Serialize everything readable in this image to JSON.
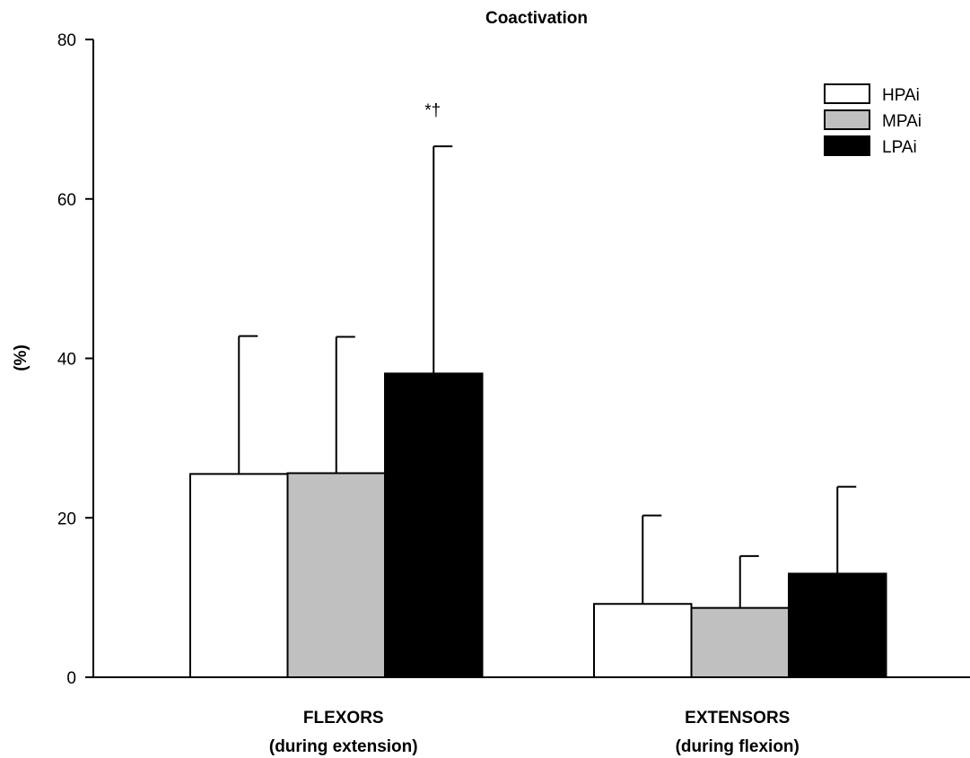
{
  "chart_data": {
    "type": "bar",
    "title": "Coactivation",
    "xlabel": "",
    "ylabel": "(%)",
    "ylim": [
      0,
      80
    ],
    "yticks": [
      "0",
      "20",
      "40",
      "60",
      "80"
    ],
    "categories": [
      {
        "line1": "FLEXORS",
        "line2": "(during extension)"
      },
      {
        "line1": "EXTENSORS",
        "line2": "(during flexion)"
      }
    ],
    "series": [
      {
        "name": "HPAi",
        "color": "#ffffff",
        "values": [
          25.5,
          9.2
        ],
        "errors": [
          17.3,
          11.1
        ]
      },
      {
        "name": "MPAi",
        "color": "#c0c0c0",
        "values": [
          25.6,
          8.7
        ],
        "errors": [
          17.1,
          6.5
        ]
      },
      {
        "name": "LPAi",
        "color": "#000000",
        "values": [
          38.1,
          13.0
        ],
        "errors": [
          28.5,
          10.9
        ]
      }
    ],
    "annotations": [
      {
        "text": "*†",
        "category": 0,
        "series": 2
      }
    ],
    "legend_position": "top-right",
    "grid": false
  }
}
